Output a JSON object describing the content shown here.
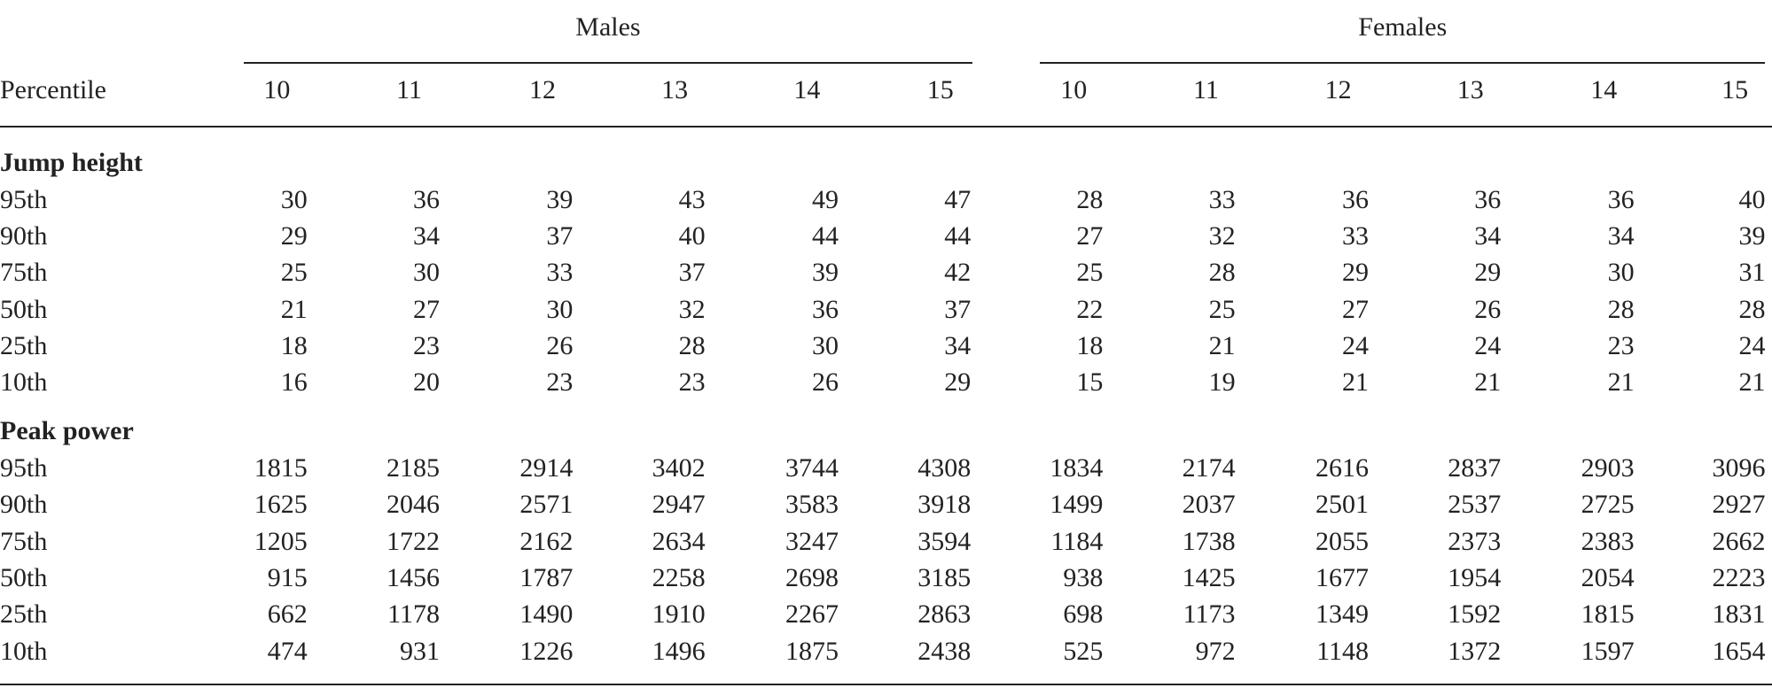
{
  "header": {
    "groups": [
      "Males",
      "Females"
    ],
    "stub": "Percentile",
    "columns": [
      "10",
      "11",
      "12",
      "13",
      "14",
      "15",
      "10",
      "11",
      "12",
      "13",
      "14",
      "15"
    ]
  },
  "sections": [
    {
      "title": "Jump height",
      "rows": [
        {
          "label": "95th",
          "values": [
            "30",
            "36",
            "39",
            "43",
            "49",
            "47",
            "28",
            "33",
            "36",
            "36",
            "36",
            "40"
          ]
        },
        {
          "label": "90th",
          "values": [
            "29",
            "34",
            "37",
            "40",
            "44",
            "44",
            "27",
            "32",
            "33",
            "34",
            "34",
            "39"
          ]
        },
        {
          "label": "75th",
          "values": [
            "25",
            "30",
            "33",
            "37",
            "39",
            "42",
            "25",
            "28",
            "29",
            "29",
            "30",
            "31"
          ]
        },
        {
          "label": "50th",
          "values": [
            "21",
            "27",
            "30",
            "32",
            "36",
            "37",
            "22",
            "25",
            "27",
            "26",
            "28",
            "28"
          ]
        },
        {
          "label": "25th",
          "values": [
            "18",
            "23",
            "26",
            "28",
            "30",
            "34",
            "18",
            "21",
            "24",
            "24",
            "23",
            "24"
          ]
        },
        {
          "label": "10th",
          "values": [
            "16",
            "20",
            "23",
            "23",
            "26",
            "29",
            "15",
            "19",
            "21",
            "21",
            "21",
            "21"
          ]
        }
      ]
    },
    {
      "title": "Peak power",
      "rows": [
        {
          "label": "95th",
          "values": [
            "1815",
            "2185",
            "2914",
            "3402",
            "3744",
            "4308",
            "1834",
            "2174",
            "2616",
            "2837",
            "2903",
            "3096"
          ]
        },
        {
          "label": "90th",
          "values": [
            "1625",
            "2046",
            "2571",
            "2947",
            "3583",
            "3918",
            "1499",
            "2037",
            "2501",
            "2537",
            "2725",
            "2927"
          ]
        },
        {
          "label": "75th",
          "values": [
            "1205",
            "1722",
            "2162",
            "2634",
            "3247",
            "3594",
            "1184",
            "1738",
            "2055",
            "2373",
            "2383",
            "2662"
          ]
        },
        {
          "label": "50th",
          "values": [
            "915",
            "1456",
            "1787",
            "2258",
            "2698",
            "3185",
            "938",
            "1425",
            "1677",
            "1954",
            "2054",
            "2223"
          ]
        },
        {
          "label": "25th",
          "values": [
            "662",
            "1178",
            "1490",
            "1910",
            "2267",
            "2863",
            "698",
            "1173",
            "1349",
            "1592",
            "1815",
            "1831"
          ]
        },
        {
          "label": "10th",
          "values": [
            "474",
            "931",
            "1226",
            "1496",
            "1875",
            "2438",
            "525",
            "972",
            "1148",
            "1372",
            "1597",
            "1654"
          ]
        }
      ]
    }
  ]
}
